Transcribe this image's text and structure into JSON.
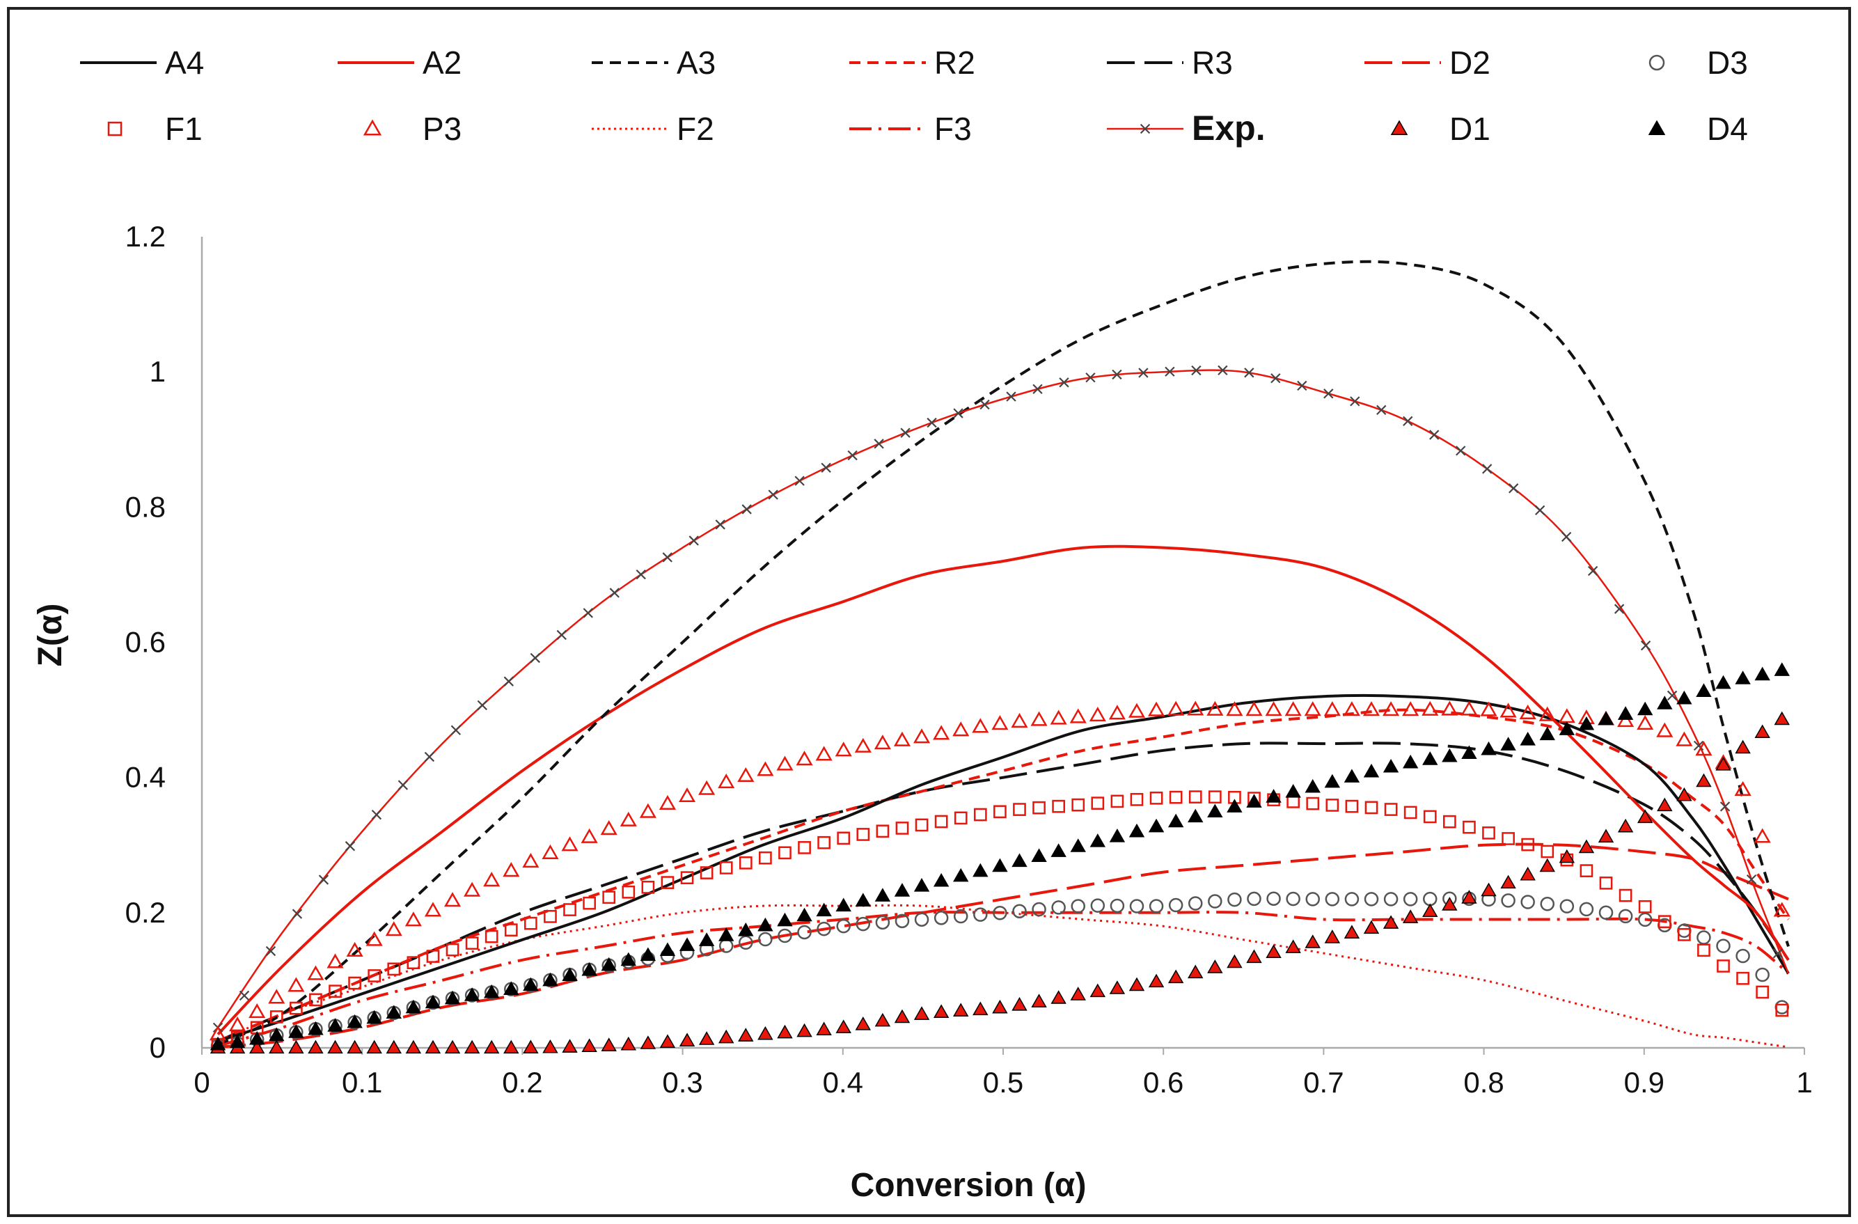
{
  "colors": {
    "red": "#e8170c",
    "black": "#111111",
    "gray": "#555555",
    "frame": "#222222"
  },
  "chart_data": {
    "type": "line",
    "title": "",
    "xlabel": "Conversion (α)",
    "ylabel": "Z(α)",
    "xlim": [
      0,
      1
    ],
    "ylim": [
      0,
      1.2
    ],
    "grid": false,
    "legend_position": "top",
    "x_ticks": [
      "0",
      "0.1",
      "0.2",
      "0.3",
      "0.4",
      "0.5",
      "0.6",
      "0.7",
      "0.8",
      "0.9",
      "1"
    ],
    "y_ticks": [
      "0",
      "0.2",
      "0.4",
      "0.6",
      "0.8",
      "1",
      "1.2"
    ],
    "x": [
      0.01,
      0.05,
      0.1,
      0.15,
      0.2,
      0.25,
      0.3,
      0.35,
      0.4,
      0.45,
      0.5,
      0.55,
      0.6,
      0.65,
      0.7,
      0.75,
      0.8,
      0.85,
      0.9,
      0.93,
      0.95,
      0.97,
      0.99
    ],
    "series": [
      {
        "name": "A4",
        "values": [
          0.01,
          0.04,
          0.08,
          0.12,
          0.16,
          0.2,
          0.25,
          0.3,
          0.34,
          0.39,
          0.43,
          0.47,
          0.49,
          0.51,
          0.52,
          0.52,
          0.51,
          0.48,
          0.42,
          0.34,
          0.27,
          0.19,
          0.11
        ]
      },
      {
        "name": "A2",
        "values": [
          0.02,
          0.12,
          0.23,
          0.32,
          0.41,
          0.49,
          0.56,
          0.62,
          0.66,
          0.7,
          0.72,
          0.74,
          0.74,
          0.73,
          0.71,
          0.66,
          0.58,
          0.47,
          0.35,
          0.28,
          0.24,
          0.2,
          0.13
        ]
      },
      {
        "name": "A3",
        "values": [
          0.005,
          0.05,
          0.15,
          0.26,
          0.37,
          0.49,
          0.6,
          0.71,
          0.81,
          0.9,
          0.98,
          1.05,
          1.1,
          1.14,
          1.16,
          1.16,
          1.13,
          1.04,
          0.84,
          0.65,
          0.47,
          0.3,
          0.15
        ]
      },
      {
        "name": "R2",
        "values": [
          0.01,
          0.05,
          0.1,
          0.15,
          0.19,
          0.23,
          0.27,
          0.31,
          0.35,
          0.38,
          0.41,
          0.44,
          0.46,
          0.48,
          0.49,
          0.5,
          0.49,
          0.47,
          0.42,
          0.37,
          0.33,
          0.26,
          0.19
        ]
      },
      {
        "name": "R3",
        "values": [
          0.01,
          0.05,
          0.1,
          0.15,
          0.2,
          0.24,
          0.28,
          0.32,
          0.35,
          0.38,
          0.4,
          0.42,
          0.44,
          0.45,
          0.45,
          0.45,
          0.44,
          0.41,
          0.36,
          0.31,
          0.26,
          0.2,
          0.13
        ]
      },
      {
        "name": "D2",
        "values": [
          0.001,
          0.01,
          0.03,
          0.06,
          0.08,
          0.11,
          0.13,
          0.16,
          0.18,
          0.2,
          0.22,
          0.24,
          0.26,
          0.27,
          0.28,
          0.29,
          0.3,
          0.3,
          0.29,
          0.28,
          0.26,
          0.24,
          0.22
        ]
      },
      {
        "name": "D3",
        "values": [
          0.003,
          0.02,
          0.04,
          0.07,
          0.09,
          0.12,
          0.14,
          0.16,
          0.18,
          0.19,
          0.2,
          0.21,
          0.21,
          0.22,
          0.22,
          0.22,
          0.22,
          0.21,
          0.19,
          0.17,
          0.15,
          0.12,
          0.05
        ]
      },
      {
        "name": "F1",
        "values": [
          0.005,
          0.05,
          0.1,
          0.14,
          0.18,
          0.22,
          0.25,
          0.28,
          0.31,
          0.33,
          0.35,
          0.36,
          0.37,
          0.37,
          0.36,
          0.35,
          0.32,
          0.28,
          0.21,
          0.16,
          0.12,
          0.09,
          0.05
        ]
      },
      {
        "name": "P3",
        "values": [
          0.02,
          0.08,
          0.15,
          0.21,
          0.27,
          0.32,
          0.37,
          0.41,
          0.44,
          0.46,
          0.48,
          0.49,
          0.5,
          0.5,
          0.5,
          0.5,
          0.5,
          0.49,
          0.48,
          0.45,
          0.42,
          0.34,
          0.18
        ]
      },
      {
        "name": "F2",
        "values": [
          0.01,
          0.05,
          0.09,
          0.13,
          0.16,
          0.18,
          0.2,
          0.21,
          0.21,
          0.21,
          0.2,
          0.19,
          0.18,
          0.16,
          0.14,
          0.12,
          0.1,
          0.07,
          0.04,
          0.02,
          0.015,
          0.008,
          0.001
        ]
      },
      {
        "name": "F3",
        "values": [
          0.003,
          0.03,
          0.07,
          0.1,
          0.13,
          0.15,
          0.17,
          0.18,
          0.19,
          0.2,
          0.2,
          0.2,
          0.2,
          0.2,
          0.19,
          0.19,
          0.19,
          0.19,
          0.19,
          0.18,
          0.17,
          0.15,
          0.11
        ]
      },
      {
        "name": "Exp.",
        "values": [
          0.03,
          0.17,
          0.32,
          0.45,
          0.56,
          0.66,
          0.74,
          0.81,
          0.87,
          0.92,
          0.96,
          0.99,
          1.0,
          1.0,
          0.97,
          0.93,
          0.86,
          0.76,
          0.6,
          0.47,
          0.36,
          0.23,
          0.11
        ]
      },
      {
        "name": "D1",
        "values": [
          0.0,
          0.0,
          0.0,
          0.0,
          0.0,
          0.003,
          0.01,
          0.02,
          0.03,
          0.05,
          0.06,
          0.08,
          0.1,
          0.13,
          0.16,
          0.19,
          0.23,
          0.28,
          0.34,
          0.38,
          0.42,
          0.46,
          0.49
        ]
      },
      {
        "name": "D4",
        "values": [
          0.005,
          0.02,
          0.04,
          0.07,
          0.09,
          0.12,
          0.15,
          0.18,
          0.21,
          0.24,
          0.27,
          0.3,
          0.33,
          0.36,
          0.39,
          0.42,
          0.44,
          0.47,
          0.5,
          0.52,
          0.54,
          0.55,
          0.56
        ]
      }
    ]
  },
  "legend": [
    {
      "name": "A4",
      "style": "line-solid-black"
    },
    {
      "name": "A2",
      "style": "line-solid-red"
    },
    {
      "name": "A3",
      "style": "line-dash-black"
    },
    {
      "name": "R2",
      "style": "line-dash-red"
    },
    {
      "name": "R3",
      "style": "line-longdash-black"
    },
    {
      "name": "D2",
      "style": "line-longdash-red"
    },
    {
      "name": "D3",
      "style": "marker-circle-gray"
    },
    {
      "name": "F1",
      "style": "marker-square-red"
    },
    {
      "name": "P3",
      "style": "marker-triangle-red-open"
    },
    {
      "name": "F2",
      "style": "line-dot-red"
    },
    {
      "name": "F3",
      "style": "line-dashdot-red"
    },
    {
      "name": "Exp.",
      "style": "line-cross-red"
    },
    {
      "name": "D1",
      "style": "marker-triangle-red-filled"
    },
    {
      "name": "D4",
      "style": "marker-triangle-black-filled"
    }
  ]
}
